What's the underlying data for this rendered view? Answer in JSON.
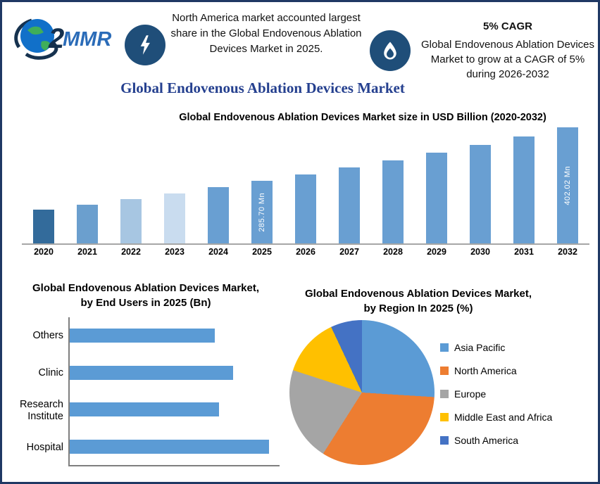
{
  "page": {
    "title": "Global Endovenous Ablation Devices Market",
    "border_color": "#1f3864",
    "accent_color": "#1f4e79"
  },
  "header": {
    "logo_text": "MMR",
    "callouts": [
      {
        "icon": "lightning-icon",
        "text": "North America market accounted largest share in the Global Endovenous Ablation Devices Market in 2025."
      },
      {
        "icon": "flame-icon",
        "title": "5% CAGR",
        "text": "Global Endovenous Ablation Devices Market to grow at a CAGR of 5% during 2026-2032"
      }
    ]
  },
  "chart_data": [
    {
      "id": "market-size",
      "type": "bar",
      "title": "Global Endovenous Ablation Devices Market size in USD Billion (2020-2032)",
      "categories": [
        "2020",
        "2021",
        "2022",
        "2023",
        "2024",
        "2025",
        "2026",
        "2027",
        "2028",
        "2029",
        "2030",
        "2031",
        "2032"
      ],
      "values": [
        224.0,
        235.2,
        247.0,
        259.3,
        272.3,
        285.7,
        300.0,
        314.9,
        330.7,
        347.2,
        364.6,
        382.8,
        402.02
      ],
      "unit": "Mn",
      "bar_labels": {
        "2025": "285.70 Mn",
        "2032": "402.02 Mn"
      },
      "bar_colors": [
        "#336b9b",
        "#6b9fce",
        "#a7c6e2",
        "#c9dcef",
        "#699fd2",
        "#699fd2",
        "#699fd2",
        "#699fd2",
        "#699fd2",
        "#699fd2",
        "#699fd2",
        "#699fd2",
        "#699fd2"
      ],
      "grid": false,
      "legend_position": "none"
    },
    {
      "id": "end-users",
      "type": "bar",
      "orientation": "horizontal",
      "title": "Global Endovenous Ablation Devices Market, by End Users in 2025 (Bn)",
      "categories": [
        "Others",
        "Clinic",
        "Research Institute",
        "Hospital"
      ],
      "values": [
        0.69,
        0.78,
        0.71,
        0.95
      ],
      "xlim": [
        0,
        1
      ],
      "color": "#5b9bd5",
      "grid": false,
      "legend_position": "none"
    },
    {
      "id": "by-region",
      "type": "pie",
      "title": "Global Endovenous Ablation Devices Market, by Region In 2025 (%)",
      "slices": [
        {
          "label": "Asia Pacific",
          "value": 26,
          "color": "#5B9BD5"
        },
        {
          "label": "North America",
          "value": 33,
          "color": "#ED7D31"
        },
        {
          "label": "Europe",
          "value": 21,
          "color": "#A5A5A5"
        },
        {
          "label": "Middle East and Africa",
          "value": 13,
          "color": "#FFC000"
        },
        {
          "label": "South America",
          "value": 7,
          "color": "#4472C4"
        }
      ],
      "start_angle_deg": 0,
      "legend_position": "right"
    }
  ]
}
